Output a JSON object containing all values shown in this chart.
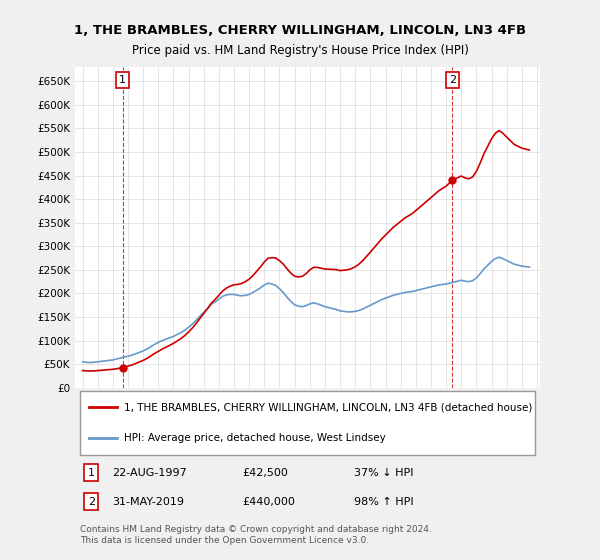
{
  "title": "1, THE BRAMBLES, CHERRY WILLINGHAM, LINCOLN, LN3 4FB",
  "subtitle": "Price paid vs. HM Land Registry's House Price Index (HPI)",
  "legend_line1": "1, THE BRAMBLES, CHERRY WILLINGHAM, LINCOLN, LN3 4FB (detached house)",
  "legend_line2": "HPI: Average price, detached house, West Lindsey",
  "annotation1_label": "1",
  "annotation1_date": "22-AUG-1997",
  "annotation1_price": "£42,500",
  "annotation1_hpi": "37% ↓ HPI",
  "annotation2_label": "2",
  "annotation2_date": "31-MAY-2019",
  "annotation2_price": "£440,000",
  "annotation2_hpi": "98% ↑ HPI",
  "footer": "Contains HM Land Registry data © Crown copyright and database right 2024.\nThis data is licensed under the Open Government Licence v3.0.",
  "price_color": "#cc0000",
  "hpi_color": "#6699cc",
  "vline_color": "#cc0000",
  "ylim": [
    0,
    680000
  ],
  "yticks": [
    0,
    50000,
    100000,
    150000,
    200000,
    250000,
    300000,
    350000,
    400000,
    450000,
    500000,
    550000,
    600000,
    650000
  ],
  "background_color": "#f0f0f0",
  "plot_background": "#ffffff",
  "sale1_x": 1997.65,
  "sale1_y": 42500,
  "sale2_x": 2019.42,
  "sale2_y": 440000,
  "hpi_years": [
    1995.0,
    1995.25,
    1995.5,
    1995.75,
    1996.0,
    1996.25,
    1996.5,
    1996.75,
    1997.0,
    1997.25,
    1997.5,
    1997.75,
    1998.0,
    1998.25,
    1998.5,
    1998.75,
    1999.0,
    1999.25,
    1999.5,
    1999.75,
    2000.0,
    2000.25,
    2000.5,
    2000.75,
    2001.0,
    2001.25,
    2001.5,
    2001.75,
    2002.0,
    2002.25,
    2002.5,
    2002.75,
    2003.0,
    2003.25,
    2003.5,
    2003.75,
    2004.0,
    2004.25,
    2004.5,
    2004.75,
    2005.0,
    2005.25,
    2005.5,
    2005.75,
    2006.0,
    2006.25,
    2006.5,
    2006.75,
    2007.0,
    2007.25,
    2007.5,
    2007.75,
    2008.0,
    2008.25,
    2008.5,
    2008.75,
    2009.0,
    2009.25,
    2009.5,
    2009.75,
    2010.0,
    2010.25,
    2010.5,
    2010.75,
    2011.0,
    2011.25,
    2011.5,
    2011.75,
    2012.0,
    2012.25,
    2012.5,
    2012.75,
    2013.0,
    2013.25,
    2013.5,
    2013.75,
    2014.0,
    2014.25,
    2014.5,
    2014.75,
    2015.0,
    2015.25,
    2015.5,
    2015.75,
    2016.0,
    2016.25,
    2016.5,
    2016.75,
    2017.0,
    2017.25,
    2017.5,
    2017.75,
    2018.0,
    2018.25,
    2018.5,
    2018.75,
    2019.0,
    2019.25,
    2019.5,
    2019.75,
    2020.0,
    2020.25,
    2020.5,
    2020.75,
    2021.0,
    2021.25,
    2021.5,
    2021.75,
    2022.0,
    2022.25,
    2022.5,
    2022.75,
    2023.0,
    2023.25,
    2023.5,
    2023.75,
    2024.0,
    2024.25,
    2024.5
  ],
  "hpi_values": [
    55000,
    54000,
    53500,
    54000,
    55000,
    56000,
    57000,
    58000,
    59000,
    61000,
    63000,
    65000,
    67000,
    69000,
    72000,
    75000,
    78000,
    82000,
    87000,
    92000,
    96000,
    100000,
    103000,
    106000,
    109000,
    113000,
    117000,
    122000,
    128000,
    135000,
    143000,
    152000,
    160000,
    168000,
    177000,
    182000,
    188000,
    194000,
    197000,
    198000,
    198000,
    196000,
    195000,
    196000,
    198000,
    202000,
    207000,
    212000,
    218000,
    222000,
    220000,
    217000,
    210000,
    202000,
    192000,
    183000,
    176000,
    173000,
    172000,
    174000,
    178000,
    180000,
    178000,
    175000,
    172000,
    170000,
    168000,
    166000,
    163000,
    162000,
    161000,
    161000,
    162000,
    164000,
    167000,
    171000,
    175000,
    179000,
    183000,
    187000,
    190000,
    193000,
    196000,
    198000,
    200000,
    202000,
    203000,
    204000,
    206000,
    208000,
    210000,
    212000,
    214000,
    216000,
    218000,
    219000,
    220000,
    222000,
    224000,
    226000,
    228000,
    226000,
    225000,
    227000,
    233000,
    242000,
    252000,
    260000,
    268000,
    274000,
    277000,
    274000,
    270000,
    266000,
    262000,
    260000,
    258000,
    257000,
    256000
  ],
  "price_years": [
    1995.0,
    1995.25,
    1995.5,
    1995.75,
    1996.0,
    1996.25,
    1996.5,
    1996.75,
    1997.0,
    1997.25,
    1997.5,
    1997.75,
    1998.0,
    1998.25,
    1998.5,
    1998.75,
    1999.0,
    1999.25,
    1999.5,
    1999.75,
    2000.0,
    2000.25,
    2000.5,
    2000.75,
    2001.0,
    2001.25,
    2001.5,
    2001.75,
    2002.0,
    2002.25,
    2002.5,
    2002.75,
    2003.0,
    2003.25,
    2003.5,
    2003.75,
    2004.0,
    2004.25,
    2004.5,
    2004.75,
    2005.0,
    2005.25,
    2005.5,
    2005.75,
    2006.0,
    2006.25,
    2006.5,
    2006.75,
    2007.0,
    2007.25,
    2007.5,
    2007.75,
    2008.0,
    2008.25,
    2008.5,
    2008.75,
    2009.0,
    2009.25,
    2009.5,
    2009.75,
    2010.0,
    2010.25,
    2010.5,
    2010.75,
    2011.0,
    2011.25,
    2011.5,
    2011.75,
    2012.0,
    2012.25,
    2012.5,
    2012.75,
    2013.0,
    2013.25,
    2013.5,
    2013.75,
    2014.0,
    2014.25,
    2014.5,
    2014.75,
    2015.0,
    2015.25,
    2015.5,
    2015.75,
    2016.0,
    2016.25,
    2016.5,
    2016.75,
    2017.0,
    2017.25,
    2017.5,
    2017.75,
    2018.0,
    2018.25,
    2018.5,
    2018.75,
    2019.0,
    2019.25,
    2019.5,
    2019.75,
    2020.0,
    2020.25,
    2020.5,
    2020.75,
    2021.0,
    2021.25,
    2021.5,
    2021.75,
    2022.0,
    2022.25,
    2022.5,
    2022.75,
    2023.0,
    2023.25,
    2023.5,
    2023.75,
    2024.0,
    2024.25,
    2024.5
  ],
  "price_paid_years": [
    1997.65,
    2019.42
  ],
  "price_paid_values": [
    42500,
    440000
  ],
  "xmin": 1994.5,
  "xmax": 2025.2
}
